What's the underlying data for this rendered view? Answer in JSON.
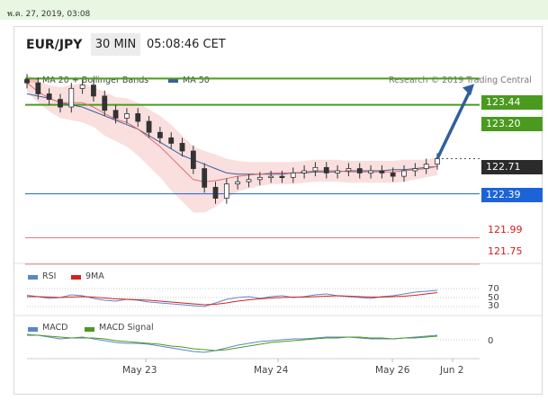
{
  "header": {
    "date": "พ.ค. 27, 2019, 03:08",
    "symbol": "EUR/JPY",
    "timeframe": "30 MIN",
    "time": "05:08:46 CET"
  },
  "legend_main": [
    {
      "label": "MA 20 + Bollinger Bands",
      "color": "#f08a8a"
    },
    {
      "label": "MA 50",
      "color": "#3a5f9e"
    }
  ],
  "credit": "Research © 2019 Trading Central",
  "levels": [
    {
      "value": "123.44",
      "style": "green-box",
      "color": "#4a9a1e"
    },
    {
      "value": "123.20",
      "style": "green-box",
      "color": "#4a9a1e"
    },
    {
      "value": "122.71",
      "style": "dark-box",
      "color": "#2b2b2b"
    },
    {
      "value": "122.39",
      "style": "blue-box",
      "color": "#1d63d8"
    },
    {
      "value": "121.99",
      "style": "red-text",
      "color": "#d02020"
    },
    {
      "value": "121.75",
      "style": "red-text",
      "color": "#d02020"
    }
  ],
  "rsi": {
    "legend": [
      {
        "label": "RSI",
        "color": "#5b86c8"
      },
      {
        "label": "9MA",
        "color": "#d82020"
      }
    ],
    "ticks": [
      "70",
      "50",
      "30"
    ]
  },
  "macd": {
    "legend": [
      {
        "label": "MACD",
        "color": "#5b86c8"
      },
      {
        "label": "MACD Signal",
        "color": "#4a9a1e"
      }
    ],
    "ticks": [
      "0"
    ]
  },
  "xaxis": {
    "labels": [
      "May 23",
      "May 24",
      "May 26",
      "Jun 2"
    ]
  },
  "chart_data": {
    "type": "line",
    "series": [
      {
        "name": "EUR/JPY",
        "values": [
          123.4,
          123.3,
          123.25,
          123.18,
          123.35,
          123.38,
          123.28,
          123.15,
          123.08,
          123.12,
          123.05,
          122.95,
          122.9,
          122.85,
          122.78,
          122.62,
          122.45,
          122.35,
          122.48,
          122.5,
          122.52,
          122.54,
          122.55,
          122.54,
          122.58,
          122.6,
          122.63,
          122.58,
          122.6,
          122.62,
          122.58,
          122.6,
          122.58,
          122.55,
          122.6,
          122.62,
          122.66,
          122.71
        ]
      },
      {
        "name": "MA 20 + Bollinger Bands",
        "values": [
          123.4,
          123.32,
          123.26,
          123.22,
          123.22,
          123.22,
          123.18,
          123.12,
          123.07,
          123.04,
          122.98,
          122.9,
          122.82,
          122.72,
          122.62,
          122.52,
          122.5,
          122.51,
          122.53,
          122.55,
          122.56,
          122.57,
          122.58,
          122.58,
          122.58,
          122.59,
          122.6,
          122.6,
          122.6,
          122.59,
          122.59,
          122.59,
          122.59,
          122.59,
          122.6,
          122.61,
          122.62,
          122.64
        ]
      },
      {
        "name": "MA 50",
        "values": [
          123.3,
          123.28,
          123.26,
          123.22,
          123.2,
          123.18,
          123.14,
          123.1,
          123.06,
          123.02,
          122.98,
          122.92,
          122.86,
          122.8,
          122.74,
          122.7,
          122.66,
          122.62,
          122.58,
          122.57,
          122.57,
          122.57,
          122.57,
          122.57,
          122.58,
          122.58,
          122.59,
          122.59,
          122.59,
          122.6,
          122.6,
          122.6,
          122.6,
          122.61,
          122.61,
          122.62,
          122.63,
          122.64
        ]
      }
    ],
    "ylim": [
      121.7,
      123.5
    ],
    "levels": [
      123.44,
      123.2,
      122.71,
      122.39,
      121.99,
      121.75
    ],
    "forecast_target": 123.44,
    "rsi_values": [
      55,
      52,
      48,
      50,
      56,
      54,
      48,
      44,
      42,
      46,
      44,
      40,
      38,
      36,
      34,
      32,
      30,
      38,
      46,
      50,
      52,
      48,
      52,
      54,
      50,
      52,
      56,
      58,
      54,
      52,
      50,
      48,
      52,
      54,
      58,
      62,
      64,
      66
    ],
    "rsi_ma_values": [
      52,
      52,
      51,
      50,
      51,
      52,
      51,
      49,
      47,
      46,
      45,
      44,
      42,
      40,
      38,
      36,
      34,
      35,
      38,
      42,
      45,
      47,
      49,
      50,
      51,
      51,
      52,
      53,
      54,
      53,
      52,
      51,
      51,
      52,
      53,
      55,
      58,
      61
    ],
    "rsi_ylim": [
      20,
      80
    ],
    "macd_values": [
      0.06,
      0.05,
      0.03,
      0.01,
      0.02,
      0.03,
      0.01,
      -0.01,
      -0.03,
      -0.04,
      -0.04,
      -0.05,
      -0.07,
      -0.09,
      -0.11,
      -0.13,
      -0.14,
      -0.12,
      -0.09,
      -0.06,
      -0.04,
      -0.02,
      -0.01,
      0.0,
      0.01,
      0.01,
      0.02,
      0.03,
      0.03,
      0.03,
      0.02,
      0.01,
      0.01,
      0.01,
      0.02,
      0.03,
      0.04,
      0.05
    ],
    "macd_signal_values": [
      0.05,
      0.05,
      0.04,
      0.03,
      0.02,
      0.02,
      0.02,
      0.01,
      -0.01,
      -0.02,
      -0.03,
      -0.04,
      -0.05,
      -0.07,
      -0.08,
      -0.1,
      -0.11,
      -0.12,
      -0.11,
      -0.09,
      -0.07,
      -0.05,
      -0.03,
      -0.02,
      -0.01,
      0.0,
      0.01,
      0.02,
      0.02,
      0.03,
      0.03,
      0.02,
      0.02,
      0.01,
      0.02,
      0.02,
      0.03,
      0.04
    ],
    "macd_ylim": [
      -0.18,
      0.1
    ]
  }
}
